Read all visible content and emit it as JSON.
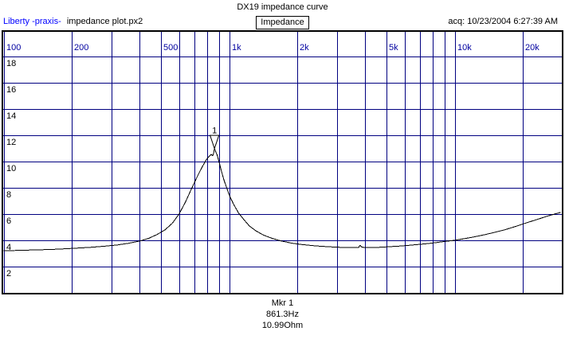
{
  "header": {
    "app_label": "Liberty -praxis-",
    "file_label": "impedance plot.px2",
    "title": "DX19 impedance curve",
    "plot_type_button": "Impedance",
    "acq_label": "acq: 10/23/2004 6:27:39 AM"
  },
  "footer": {
    "marker_name": "Mkr 1",
    "marker_freq": "861.3Hz",
    "marker_value": "10.99Ohm"
  },
  "colors": {
    "grid": "#000080",
    "freq_labels": "#0000A0",
    "y_labels": "#000000",
    "app_label": "#0000FF",
    "curve": "#000000",
    "frame": "#000000",
    "background": "#FFFFFF"
  },
  "chart_data": {
    "type": "line",
    "title": "DX19 impedance curve",
    "x_axis": {
      "scale": "log",
      "unit": "Hz",
      "min": 100,
      "max": 29500,
      "ticks": [
        {
          "f": 100,
          "label": "100"
        },
        {
          "f": 200,
          "label": "200"
        },
        {
          "f": 500,
          "label": "500"
        },
        {
          "f": 1000,
          "label": "1k"
        },
        {
          "f": 2000,
          "label": "2k"
        },
        {
          "f": 5000,
          "label": "5k"
        },
        {
          "f": 10000,
          "label": "10k"
        },
        {
          "f": 20000,
          "label": "20k"
        }
      ],
      "gridlines": [
        100,
        200,
        300,
        400,
        500,
        600,
        700,
        800,
        900,
        1000,
        2000,
        3000,
        4000,
        5000,
        6000,
        7000,
        8000,
        9000,
        10000,
        20000
      ]
    },
    "y_axis": {
      "unit": "Ohm",
      "min": 0,
      "max": 20,
      "gridline_step": 2,
      "tick_values": [
        18,
        16,
        14,
        12,
        10,
        8,
        6,
        4,
        2
      ]
    },
    "marker": {
      "label": "1",
      "freq_hz": 861.3,
      "ohm": 10.99
    },
    "series": [
      {
        "name": "Impedance",
        "points": [
          [
            100,
            3.2
          ],
          [
            120,
            3.24
          ],
          [
            145,
            3.28
          ],
          [
            175,
            3.33
          ],
          [
            200,
            3.38
          ],
          [
            240,
            3.46
          ],
          [
            280,
            3.55
          ],
          [
            320,
            3.65
          ],
          [
            360,
            3.78
          ],
          [
            400,
            3.94
          ],
          [
            440,
            4.15
          ],
          [
            480,
            4.45
          ],
          [
            520,
            4.8
          ],
          [
            560,
            5.3
          ],
          [
            600,
            6.0
          ],
          [
            640,
            6.9
          ],
          [
            680,
            7.9
          ],
          [
            720,
            8.8
          ],
          [
            760,
            9.6
          ],
          [
            790,
            10.1
          ],
          [
            815,
            10.4
          ],
          [
            832,
            10.55
          ],
          [
            845,
            10.45
          ],
          [
            853,
            10.6
          ],
          [
            861.3,
            10.99
          ],
          [
            872,
            10.75
          ],
          [
            885,
            10.5
          ],
          [
            900,
            10.05
          ],
          [
            920,
            9.4
          ],
          [
            945,
            8.7
          ],
          [
            975,
            8.0
          ],
          [
            1010,
            7.3
          ],
          [
            1050,
            6.7
          ],
          [
            1100,
            6.1
          ],
          [
            1160,
            5.6
          ],
          [
            1230,
            5.1
          ],
          [
            1320,
            4.7
          ],
          [
            1420,
            4.4
          ],
          [
            1550,
            4.15
          ],
          [
            1700,
            3.95
          ],
          [
            1900,
            3.78
          ],
          [
            2100,
            3.68
          ],
          [
            2400,
            3.58
          ],
          [
            2700,
            3.52
          ],
          [
            3000,
            3.48
          ],
          [
            3300,
            3.45
          ],
          [
            3600,
            3.44
          ],
          [
            3750,
            3.44
          ],
          [
            3800,
            3.62
          ],
          [
            3870,
            3.5
          ],
          [
            3950,
            3.46
          ],
          [
            4300,
            3.45
          ],
          [
            4700,
            3.47
          ],
          [
            5200,
            3.52
          ],
          [
            5800,
            3.57
          ],
          [
            6500,
            3.64
          ],
          [
            7300,
            3.72
          ],
          [
            8200,
            3.82
          ],
          [
            9100,
            3.92
          ],
          [
            10000,
            4.0
          ],
          [
            11000,
            4.12
          ],
          [
            12200,
            4.26
          ],
          [
            13500,
            4.42
          ],
          [
            15000,
            4.6
          ],
          [
            16800,
            4.82
          ],
          [
            18800,
            5.08
          ],
          [
            21000,
            5.35
          ],
          [
            23500,
            5.62
          ],
          [
            26000,
            5.86
          ],
          [
            28000,
            6.02
          ],
          [
            29500,
            6.13
          ]
        ]
      }
    ]
  }
}
